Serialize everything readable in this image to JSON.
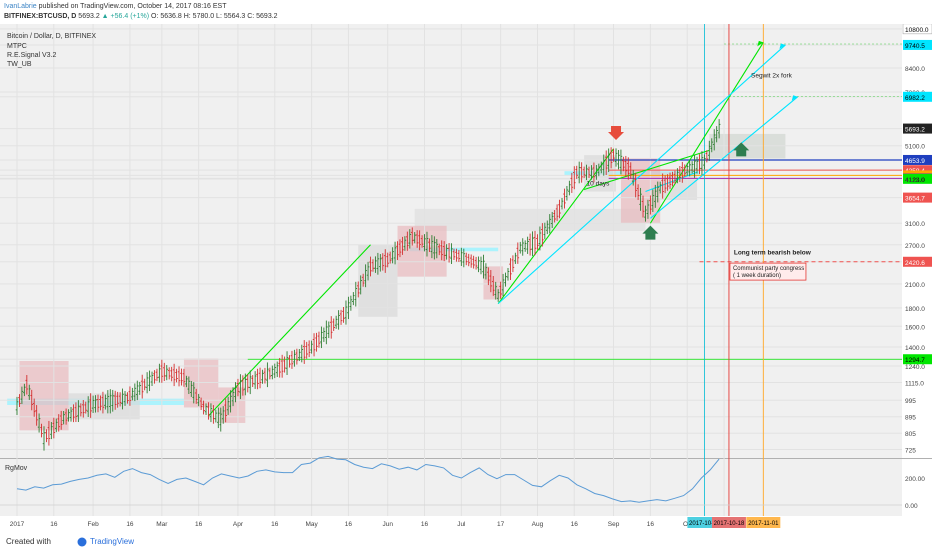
{
  "header": {
    "author": "IvanLabrie",
    "published_text": "published on TradingView.com, October 14, 2017 08:16 EST",
    "symbol": "BITFINEX:BTCUSD, D",
    "last": "5693.2",
    "change": "▲ +56.4 (+1%)",
    "o": "O: 5636.8",
    "h": "H: 5780.0",
    "l": "L: 5564.3",
    "c": "C: 5693.2"
  },
  "legend": {
    "title": "Bitcoin / Dollar, D, BITFINEX",
    "lines": [
      "MTPC",
      "R.E.Signal V3.2",
      "TW_UB"
    ]
  },
  "footer": {
    "created_with": "Created with",
    "brand": "TradingView"
  },
  "colors": {
    "bull": "#26a69a",
    "bear": "#ef5350",
    "green_line": "#00e600",
    "cyan_line": "#00e5ff",
    "rgmov": "#5b9bd5"
  },
  "chart_data": {
    "type": "line",
    "scale": "log",
    "ylim": [
      700,
      11000
    ],
    "y_ticks": [
      10800,
      9740.5,
      8400,
      7200,
      6982.2,
      5693.2,
      5100,
      4653.9,
      4358.4,
      4214.5,
      4134.7,
      4123.0,
      4119,
      3654.7,
      3100,
      2700,
      2420.6,
      2100,
      1800,
      1600,
      1400,
      1294.7,
      1240,
      1115,
      995,
      895,
      805,
      725
    ],
    "x_ticks": [
      "2017",
      "16",
      "Feb",
      "16",
      "Mar",
      "16",
      "Apr",
      "16",
      "May",
      "16",
      "Jun",
      "16",
      "Jul",
      "17",
      "Aug",
      "16",
      "Sep",
      "16",
      "Oc",
      "16"
    ],
    "x_date_labels": [
      "2017-10-08",
      "2017-10-18",
      "2017-11-01"
    ],
    "series": [
      {
        "x": [
          "2017-01-01",
          "2017-01-05",
          "2017-01-12",
          "2017-01-20",
          "2017-02-01",
          "2017-02-15",
          "2017-03-01",
          "2017-03-10",
          "2017-03-18",
          "2017-03-25",
          "2017-04-01",
          "2017-04-15",
          "2017-05-01",
          "2017-05-15",
          "2017-05-25",
          "2017-06-01",
          "2017-06-11",
          "2017-06-20",
          "2017-07-01",
          "2017-07-10",
          "2017-07-16",
          "2017-07-25",
          "2017-08-01",
          "2017-08-10",
          "2017-08-17",
          "2017-08-25",
          "2017-09-01",
          "2017-09-08",
          "2017-09-14",
          "2017-09-20",
          "2017-09-30",
          "2017-10-08",
          "2017-10-14"
        ],
        "values": [
          960,
          1100,
          780,
          890,
          970,
          1010,
          1200,
          1150,
          950,
          880,
          1080,
          1190,
          1400,
          1750,
          2350,
          2450,
          2850,
          2650,
          2500,
          2350,
          1950,
          2650,
          2750,
          3400,
          4300,
          4300,
          4800,
          4350,
          3300,
          3900,
          4350,
          4600,
          5693.2
        ]
      }
    ],
    "price_labels": [
      {
        "value": "10800.0",
        "color": "#ffffff"
      },
      {
        "value": "9740.5",
        "color": "#00e5ff"
      },
      {
        "value": "6982.2",
        "color": "#00e5ff"
      },
      {
        "value": "5693.2",
        "color": "#222222"
      },
      {
        "value": "4653.9",
        "color": "#1f3fbf"
      },
      {
        "value": "4358.4",
        "color": "#ef5350"
      },
      {
        "value": "4214.5",
        "color": "#ffa500"
      },
      {
        "value": "4134.7",
        "color": "#9c27b0"
      },
      {
        "value": "4123.0",
        "color": "#00e600"
      },
      {
        "value": "3654.7",
        "color": "#ef5350"
      },
      {
        "value": "2420.6",
        "color": "#ef5350"
      },
      {
        "value": "1294.7",
        "color": "#00e600"
      }
    ],
    "annotations": [
      "Segwit 2x fork",
      "10 days",
      "Long term bearish below",
      "Communist party congress",
      "( 1 week duration)"
    ],
    "indicator": {
      "name": "RgMov",
      "y_ticks": [
        "200.00",
        "0.00"
      ],
      "values": [
        120,
        110,
        135,
        125,
        150,
        155,
        175,
        190,
        200,
        220,
        230,
        205,
        250,
        270,
        240,
        225,
        190,
        160,
        190,
        200,
        175,
        150,
        200,
        230,
        215,
        200,
        215,
        250,
        260,
        245,
        240,
        240,
        300,
        310,
        350,
        360,
        340,
        335,
        300,
        280,
        270,
        305,
        290,
        265,
        280,
        260,
        300,
        290,
        275,
        220,
        200,
        240,
        275,
        225,
        195,
        225,
        225,
        185,
        145,
        135,
        180,
        220,
        200,
        150,
        120,
        85,
        70,
        45,
        25,
        30,
        20,
        30,
        40,
        30,
        50,
        70,
        120,
        200,
        260,
        340
      ]
    }
  }
}
